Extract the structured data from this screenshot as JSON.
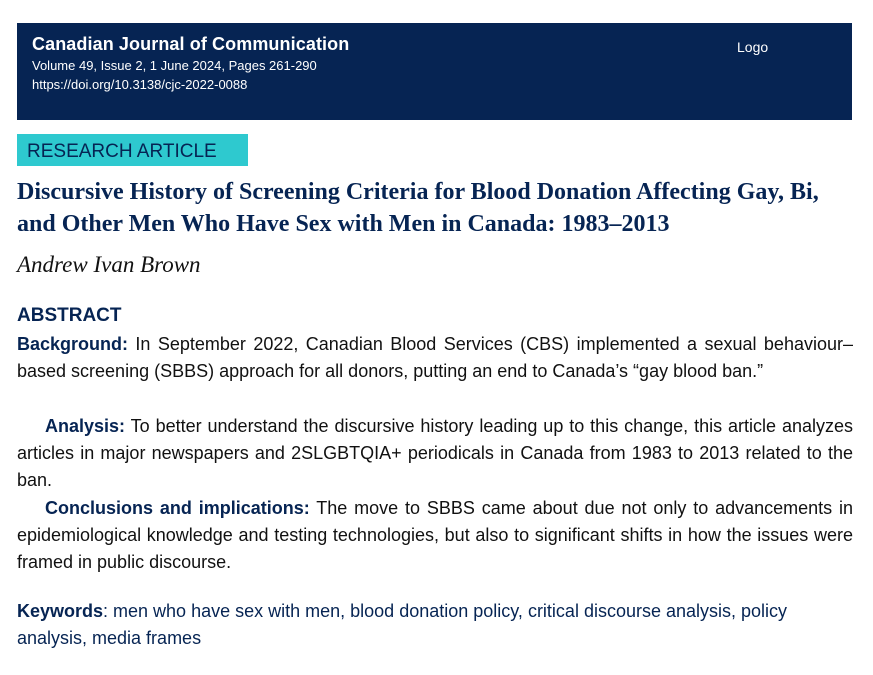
{
  "header": {
    "journal": "Canadian Journal of Communication",
    "volume_line": "Volume 49, Issue 2, 1 June 2024, Pages 261-290",
    "doi": "https://doi.org/10.3138/cjc-2022-0088",
    "logo": "Logo"
  },
  "article_type": "RESEARCH ARTICLE",
  "title": "Discursive History of Screening Criteria for Blood Donation Affecting Gay, Bi, and Other Men Who Have Sex with Men in Canada: 1983–2013",
  "author": "Andrew Ivan Brown",
  "abstract": {
    "heading": "ABSTRACT",
    "background_label": "Background:",
    "background_text": " In September 2022, Canadian Blood Services (CBS) implemented a sexual behaviour–based screening (SBBS) approach for all donors, putting an end to Canada’s “gay blood ban.”",
    "analysis_label": "Analysis:",
    "analysis_text": " To better understand the discursive history leading up to this change, this article analyzes articles in major newspapers and 2SLGBTQIA+ periodicals in Canada from 1983 to 2013 related to the ban.",
    "conclusions_label": "Conclusions and implications:",
    "conclusions_text": " The move to SBBS came about due not only to advancements in epidemiological knowledge and testing technologies, but also to significant shifts in how the issues were framed in public discourse."
  },
  "keywords": {
    "label": "Keywords",
    "text": ": men who have sex with men, blood donation policy, critical discourse analysis, policy analysis, media frames"
  },
  "colors": {
    "header_bg": "#062453",
    "badge_bg": "#2ec9cf",
    "accent": "#062453"
  }
}
